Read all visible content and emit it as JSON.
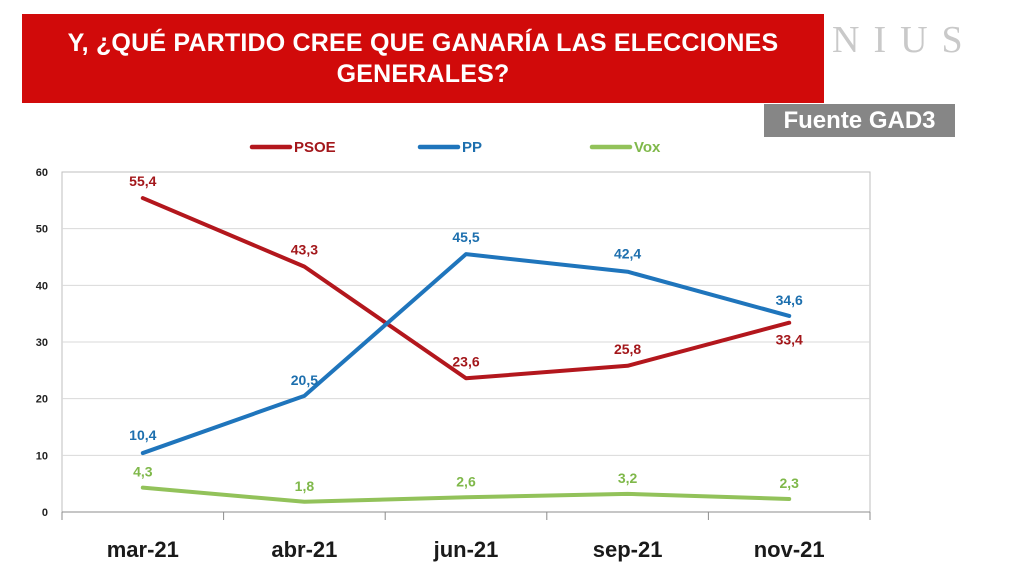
{
  "header": {
    "title": "Y, ¿QUÉ PARTIDO CREE QUE GANARÍA LAS ELECCIONES GENERALES?",
    "watermark": "NIUS",
    "source": "Fuente GAD3"
  },
  "chart_data": {
    "type": "line",
    "title": "Y, ¿QUÉ PARTIDO CREE QUE GANARÍA LAS ELECCIONES GENERALES?",
    "categories": [
      "mar-21",
      "abr-21",
      "jun-21",
      "sep-21",
      "nov-21"
    ],
    "series": [
      {
        "name": "PSOE",
        "color": "#b3171d",
        "labelColor": "#a3171b",
        "values": [
          55.4,
          43.3,
          23.6,
          25.8,
          33.4
        ],
        "labels": [
          "55,4",
          "43,3",
          "23,6",
          "25,8",
          "33,4"
        ]
      },
      {
        "name": "PP",
        "color": "#1f75bc",
        "labelColor": "#1d6fae",
        "values": [
          10.4,
          20.5,
          45.5,
          42.4,
          34.6
        ],
        "labels": [
          "10,4",
          "20,5",
          "45,5",
          "42,4",
          "34,6"
        ]
      },
      {
        "name": "Vox",
        "color": "#92c25a",
        "labelColor": "#7fb84a",
        "values": [
          4.3,
          1.8,
          2.6,
          3.2,
          2.3
        ],
        "labels": [
          "4,3",
          "1,8",
          "2,6",
          "3,2",
          "2,3"
        ]
      }
    ],
    "ylim": [
      0,
      60
    ],
    "yticks": [
      0,
      10,
      20,
      30,
      40,
      50,
      60
    ],
    "grid": true,
    "legend": "top",
    "xlabel": "",
    "ylabel": ""
  }
}
